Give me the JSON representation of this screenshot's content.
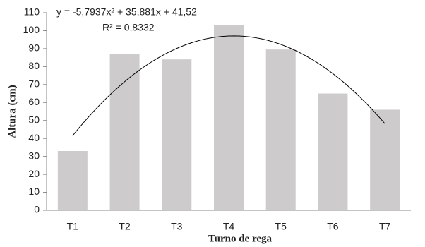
{
  "chart_data": {
    "type": "bar",
    "categories": [
      "T1",
      "T2",
      "T3",
      "T4",
      "T5",
      "T6",
      "T7"
    ],
    "values": [
      33,
      87,
      84,
      103,
      89.5,
      65,
      56
    ],
    "color": "#cdcbcb",
    "ylim": [
      0,
      110
    ],
    "yticks": [
      0,
      10,
      20,
      30,
      40,
      50,
      60,
      70,
      80,
      90,
      100,
      110
    ],
    "x_label": "Turno de rega",
    "y_label": "Altura (cm)",
    "trendline": {
      "equation": "y = -5,7937x² + 35,881x + 41,52",
      "r_squared": "R² = 0,8332",
      "coefficients": [
        -5.7937,
        35.881,
        41.52
      ],
      "color": "#000000"
    }
  }
}
